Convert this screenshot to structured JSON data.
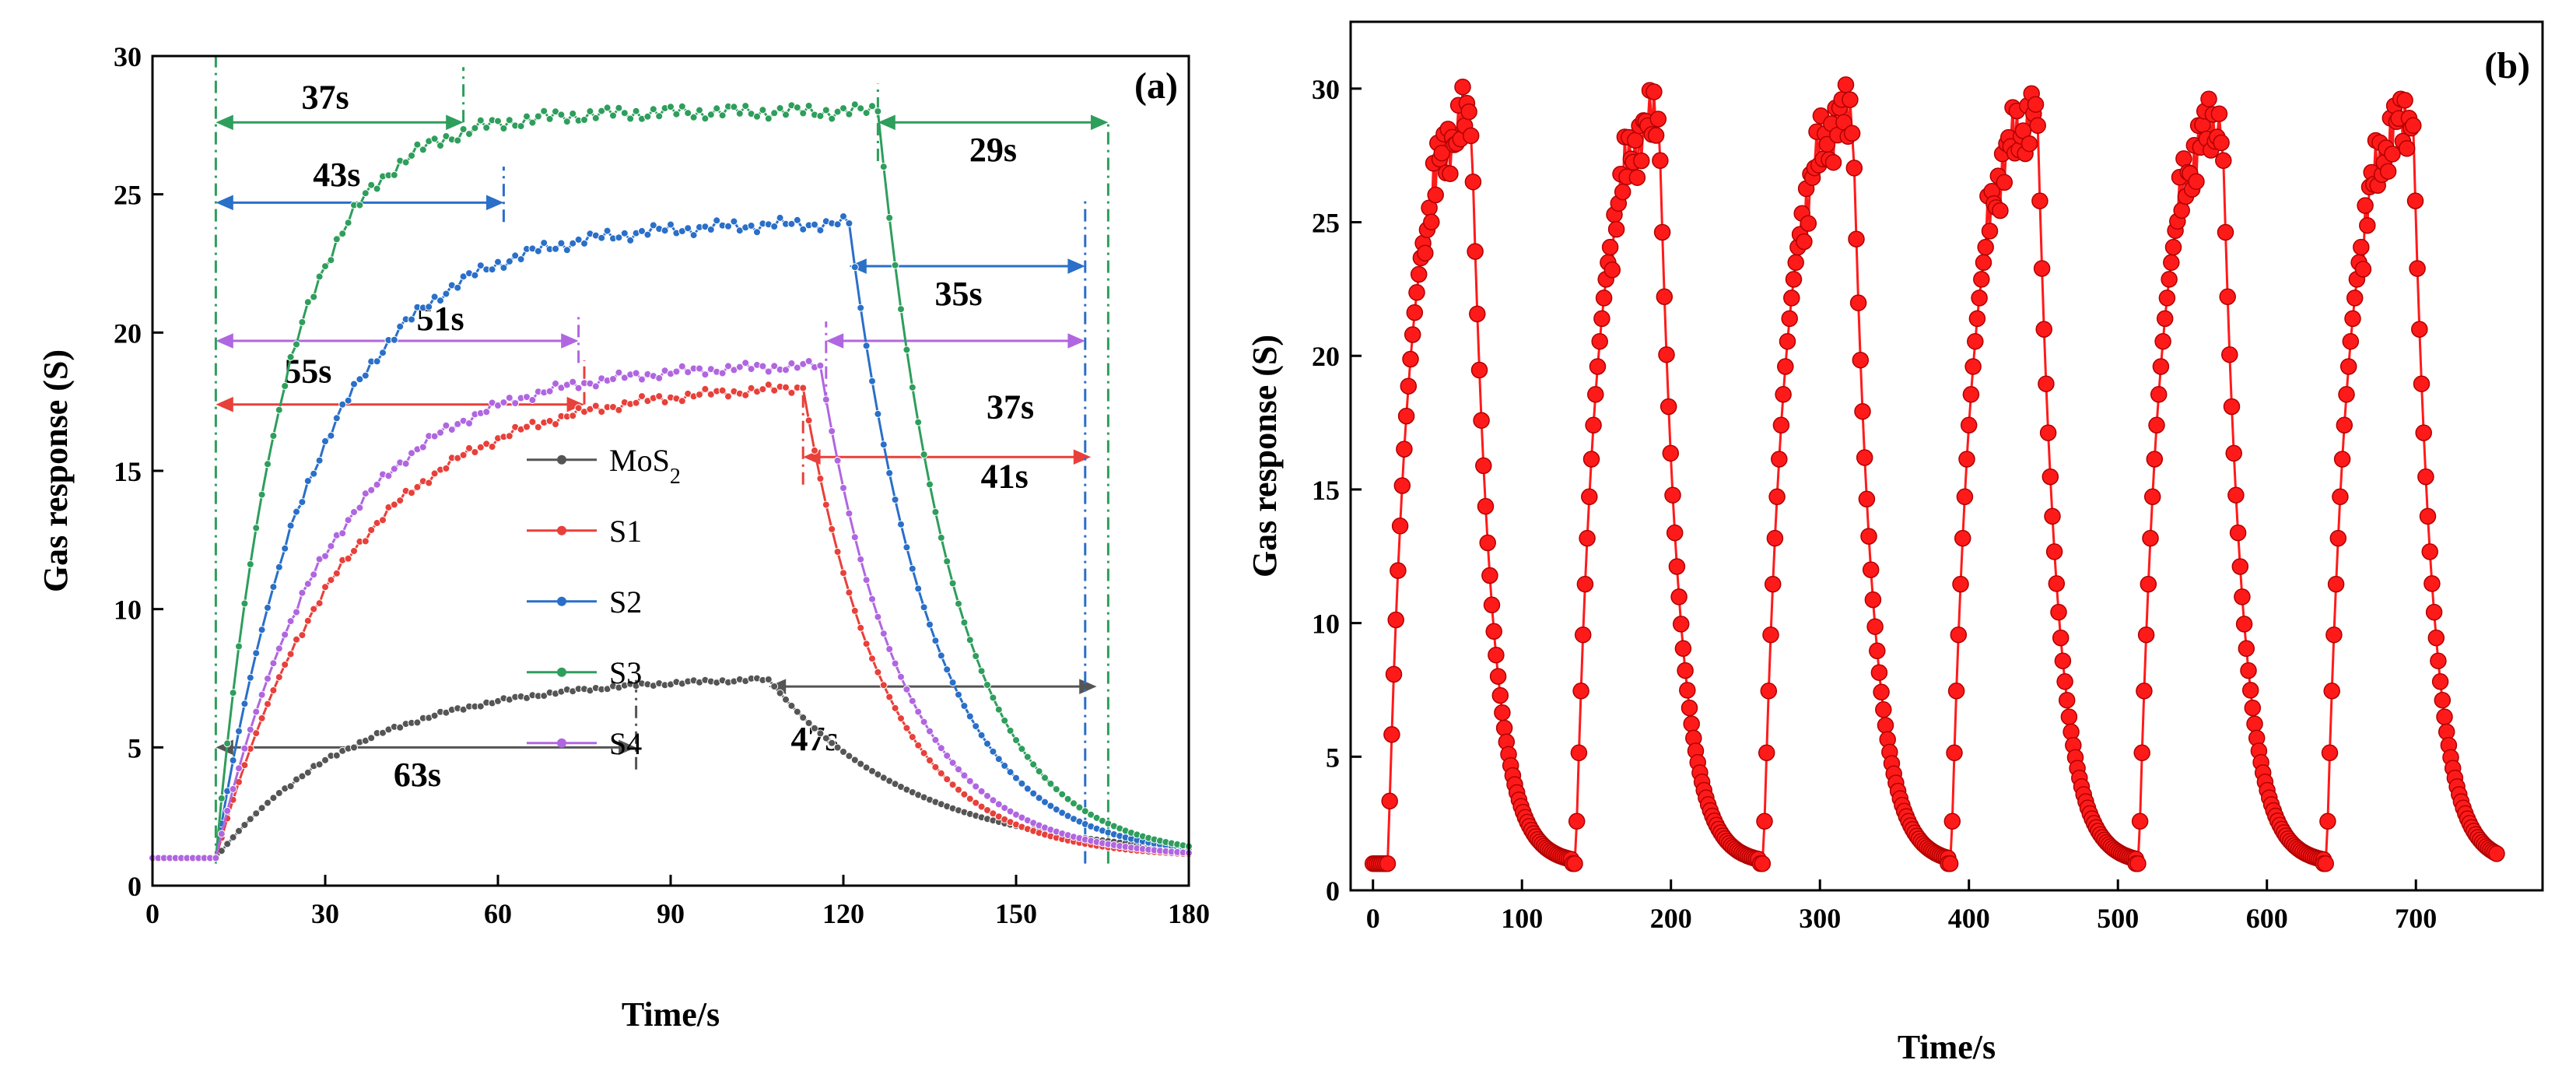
{
  "chart_data": [
    {
      "panel": "(a)",
      "type": "line",
      "xlabel": "Time/s",
      "ylabel": "Gas response (S)",
      "xlim": [
        0,
        180
      ],
      "ylim": [
        0,
        30
      ],
      "xticks": [
        0,
        30,
        60,
        90,
        120,
        150,
        180
      ],
      "yticks": [
        0,
        5,
        10,
        15,
        20,
        25,
        30
      ],
      "legend_position": "center",
      "series": [
        {
          "name": "MoS",
          "subscript": "2",
          "color": "#555555",
          "t_on": 11,
          "t_off": 107,
          "base": 1,
          "peak": 7.6,
          "tau_rise": 25,
          "tau_decay": 25
        },
        {
          "name": "S1",
          "color": "#e8403a",
          "t_on": 11,
          "t_off": 113,
          "base": 1,
          "peak": 18.2,
          "tau_rise": 23,
          "tau_decay": 14
        },
        {
          "name": "S2",
          "color": "#2a6fc8",
          "t_on": 11,
          "t_off": 121,
          "base": 1,
          "peak": 24.0,
          "tau_rise": 18,
          "tau_decay": 14
        },
        {
          "name": "S3",
          "color": "#2e9e5c",
          "t_on": 11,
          "t_off": 126,
          "base": 1,
          "peak": 28.0,
          "tau_rise": 12,
          "tau_decay": 13
        },
        {
          "name": "S4",
          "color": "#b066e0",
          "t_on": 11,
          "t_off": 116,
          "base": 1,
          "peak": 18.9,
          "tau_rise": 20,
          "tau_decay": 14
        }
      ],
      "annotations": [
        {
          "text": "37s",
          "color": "#2e9e5c",
          "x1": 11,
          "x2": 54,
          "y": 27.6,
          "label_x": 30,
          "label_y": 28.1
        },
        {
          "text": "29s",
          "color": "#2e9e5c",
          "x1": 126,
          "x2": 166,
          "y": 27.6,
          "label_x": 146,
          "label_y": 26.2
        },
        {
          "text": "43s",
          "color": "#2a6fc8",
          "x1": 11,
          "x2": 61,
          "y": 24.7,
          "label_x": 32,
          "label_y": 25.3
        },
        {
          "text": "35s",
          "color": "#2a6fc8",
          "x1": 121,
          "x2": 162,
          "y": 22.4,
          "label_x": 140,
          "label_y": 21.0
        },
        {
          "text": "51s",
          "color": "#b066e0",
          "x1": 11,
          "x2": 74,
          "y": 19.7,
          "label_x": 50,
          "label_y": 20.1
        },
        {
          "text": "37s",
          "color": "#b066e0",
          "x1": 117,
          "x2": 162,
          "y": 19.7,
          "label_x": 149,
          "label_y": 16.9
        },
        {
          "text": "55s",
          "color": "#e8403a",
          "x1": 11,
          "x2": 75,
          "y": 17.4,
          "label_x": 27,
          "label_y": 18.2
        },
        {
          "text": "41s",
          "color": "#e8403a",
          "x1": 113,
          "x2": 163,
          "y": 15.5,
          "label_x": 148,
          "label_y": 14.4
        },
        {
          "text": "63s",
          "color": "#555555",
          "x1": 11,
          "x2": 84,
          "y": 5.0,
          "label_x": 46,
          "label_y": 3.6
        },
        {
          "text": "47s",
          "color": "#555555",
          "x1": 107,
          "x2": 164,
          "y": 7.2,
          "label_x": 115,
          "label_y": 4.9
        }
      ]
    },
    {
      "panel": "(b)",
      "type": "scatter",
      "xlabel": "Time/s",
      "ylabel": "Gas response (S)",
      "xlim": [
        -15,
        785
      ],
      "ylim": [
        0,
        32.5
      ],
      "xticks": [
        0,
        100,
        200,
        300,
        400,
        500,
        600,
        700
      ],
      "yticks": [
        0,
        5,
        10,
        15,
        20,
        25,
        30
      ],
      "color": "#ff1a1a",
      "base": 1,
      "peak": 29.5,
      "tau_rise": 14,
      "tau_decay": 13,
      "cycles": [
        {
          "t_on": 10,
          "t_off": 66,
          "t_end": 134
        },
        {
          "t_on": 136,
          "t_off": 192,
          "t_end": 260
        },
        {
          "t_on": 262,
          "t_off": 322,
          "t_end": 386
        },
        {
          "t_on": 388,
          "t_off": 446,
          "t_end": 512
        },
        {
          "t_on": 514,
          "t_off": 570,
          "t_end": 638
        },
        {
          "t_on": 640,
          "t_off": 698,
          "t_end": 755
        }
      ]
    }
  ]
}
